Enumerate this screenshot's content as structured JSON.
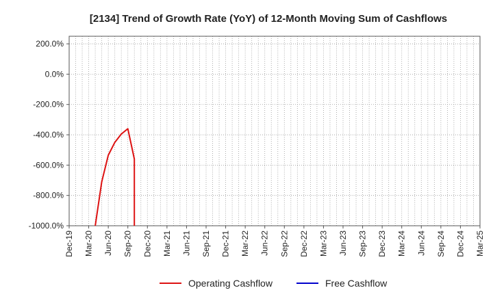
{
  "chart_data": {
    "type": "line",
    "title": "[2134]  Trend of Growth Rate (YoY) of 12-Month Moving Sum of Cashflows",
    "xlabel": "",
    "ylabel": "",
    "x_tick_labels": [
      "Dec-19",
      "Mar-20",
      "Jun-20",
      "Sep-20",
      "Dec-20",
      "Mar-21",
      "Jun-21",
      "Sep-21",
      "Dec-21",
      "Mar-22",
      "Jun-22",
      "Sep-22",
      "Dec-22",
      "Mar-23",
      "Jun-23",
      "Sep-23",
      "Dec-23",
      "Mar-24",
      "Jun-24",
      "Sep-24",
      "Dec-24",
      "Mar-25"
    ],
    "y_ticks": [
      200,
      0,
      -200,
      -400,
      -600,
      -800,
      -1000
    ],
    "y_tick_labels": [
      "200.0%",
      "0.0%",
      "-200.0%",
      "-400.0%",
      "-600.0%",
      "-800.0%",
      "-1000.0%"
    ],
    "ylim": [
      -1000,
      250
    ],
    "grid": true,
    "legend_position": "bottom-center",
    "series": [
      {
        "name": "Operating Cashflow",
        "color": "#dd1111",
        "points": [
          {
            "x": "Apr-20",
            "y": -1000
          },
          {
            "x": "May-20",
            "y": -710
          },
          {
            "x": "Jun-20",
            "y": -535
          },
          {
            "x": "Jul-20",
            "y": -450
          },
          {
            "x": "Aug-20",
            "y": -395
          },
          {
            "x": "Sep-20",
            "y": -360
          },
          {
            "x": "Oct-20",
            "y": -560
          },
          {
            "x": "Oct-20",
            "y": -1000
          }
        ]
      },
      {
        "name": "Free Cashflow",
        "color": "#0000cc",
        "points": []
      }
    ]
  }
}
